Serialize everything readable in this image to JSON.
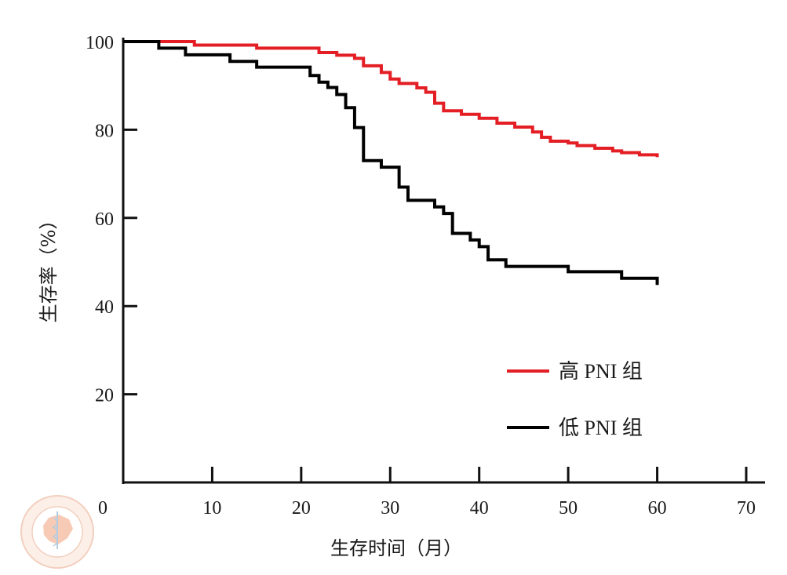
{
  "chart_data": {
    "type": "line",
    "subtype": "kaplan-meier-step",
    "xlabel": "生存时间（月）",
    "ylabel": "生存率（%）",
    "xlim": [
      0,
      70
    ],
    "ylim": [
      0,
      100
    ],
    "xticks": [
      0,
      10,
      20,
      30,
      40,
      50,
      60,
      70
    ],
    "yticks": [
      20,
      40,
      60,
      80,
      100
    ],
    "grid": false,
    "legend_position": "right-middle",
    "series": [
      {
        "name": "高 PNI 组",
        "color": "#e31e24",
        "x": [
          0,
          8,
          15,
          22,
          24,
          26,
          27,
          29,
          30,
          31,
          33,
          34,
          35,
          36,
          38,
          40,
          42,
          44,
          46,
          47,
          48,
          50,
          51,
          53,
          55,
          56,
          58,
          60
        ],
        "y": [
          100,
          99.2,
          98.5,
          97.5,
          96.9,
          96.2,
          94.5,
          93.0,
          91.5,
          90.5,
          89.5,
          88.5,
          86.0,
          84.3,
          83.5,
          82.6,
          81.5,
          80.6,
          79.5,
          78.3,
          77.4,
          77.0,
          76.4,
          75.8,
          75.2,
          74.8,
          74.3,
          73.8
        ]
      },
      {
        "name": "低 PNI 组",
        "color": "#000000",
        "x": [
          0,
          4,
          7,
          12,
          15,
          21,
          22,
          23,
          24,
          25,
          26,
          27,
          29,
          31,
          32,
          35,
          36,
          37,
          39,
          40,
          41,
          43,
          50,
          56,
          60
        ],
        "y": [
          100,
          98.5,
          97.0,
          95.5,
          94.2,
          92.3,
          90.8,
          89.6,
          88.0,
          85.0,
          80.5,
          73.0,
          71.5,
          67.0,
          64.0,
          62.5,
          61.0,
          56.5,
          55.0,
          53.5,
          50.5,
          49.0,
          47.8,
          46.3,
          44.8
        ]
      }
    ],
    "axis_zero_label": "0",
    "line_color_axis": "#111111"
  }
}
